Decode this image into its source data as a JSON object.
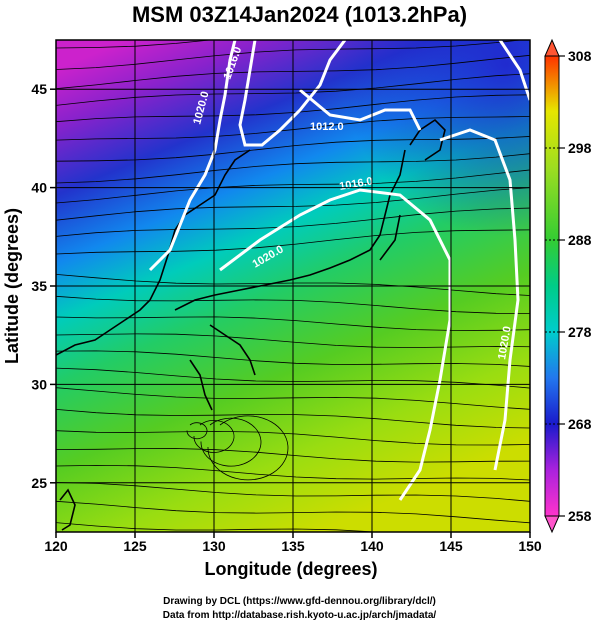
{
  "title": "MSM 03Z14Jan2024 (1013.2hPa)",
  "map": {
    "x_axis": {
      "label": "Longitude (degrees)",
      "range": [
        120,
        150
      ],
      "ticks": [
        "120",
        "125",
        "130",
        "135",
        "140",
        "145",
        "150"
      ]
    },
    "y_axis": {
      "label": "Latitude  (degrees)",
      "range": [
        22.5,
        47.5
      ],
      "ticks": [
        "25",
        "30",
        "35",
        "40",
        "45"
      ]
    },
    "grid": true,
    "field": "surface temperature with streamlines",
    "isobars": [
      {
        "label": "1020.0"
      },
      {
        "label": "1016.0"
      },
      {
        "label": "1012.0"
      },
      {
        "label": "1016.0"
      },
      {
        "label": "1020.0"
      },
      {
        "label": "1020.0"
      }
    ]
  },
  "colorbar": {
    "ticks": [
      "308",
      "298",
      "288",
      "278",
      "268",
      "258"
    ],
    "min": 258,
    "max": 308,
    "colors": {
      "low": "#ff33cc",
      "mid_low": "#1a1acc",
      "mid": "#00cccc",
      "mid_high": "#33cc33",
      "high": "#e6e600",
      "top": "#ff3300"
    }
  },
  "credits": {
    "line1": "Drawing by DCL (https://www.gfd-dennou.org/library/dcl/)",
    "line2": "Data from http://database.rish.kyoto-u.ac.jp/arch/jmadata/"
  }
}
